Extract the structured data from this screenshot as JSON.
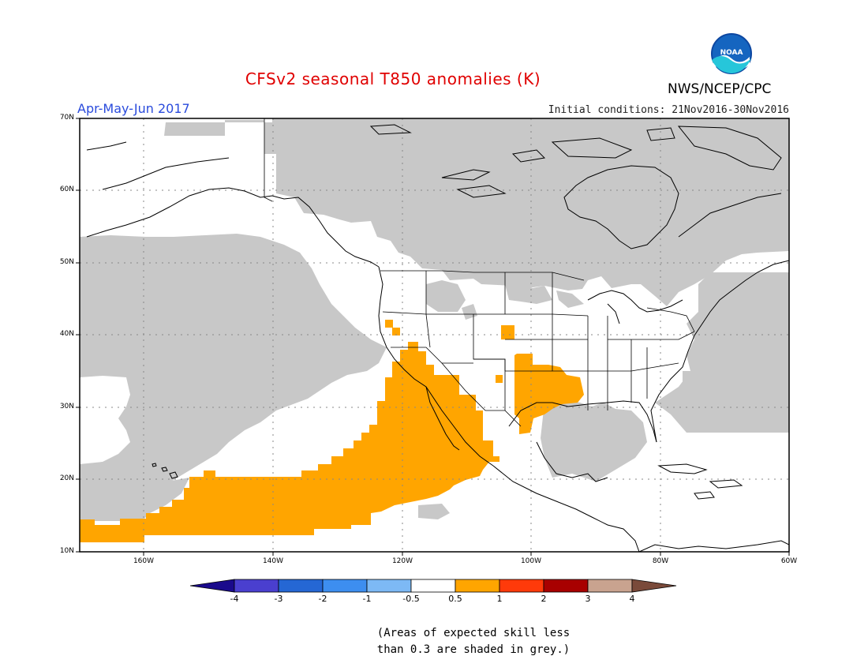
{
  "title": "CFSv2 seasonal T850 anomalies (K)",
  "period": "Apr-May-Jun 2017",
  "initial_conditions": "Initial conditions: 21Nov2016-30Nov2016",
  "agency": "NWS/NCEP/CPC",
  "logo_text": "NOAA",
  "map": {
    "lon_range": [
      -170,
      -60
    ],
    "lat_range": [
      10,
      70
    ],
    "lat_labels": [
      "70N",
      "60N",
      "50N",
      "40N",
      "30N",
      "20N",
      "10N"
    ],
    "lon_labels": [
      "160W",
      "140W",
      "120W",
      "100W",
      "80W",
      "60W"
    ],
    "colors": {
      "skill_mask": "#c8c8c8",
      "anomaly_0_5_to_1": "#ffa500",
      "land_outline": "#000000"
    }
  },
  "colorbar": {
    "labels": [
      "-4",
      "-3",
      "-2",
      "-1",
      "-0.5",
      "0.5",
      "1",
      "2",
      "3",
      "4"
    ],
    "colors": [
      "#1a0a8c",
      "#4a3fcf",
      "#2567d4",
      "#3d8ef0",
      "#7db9f5",
      "#ffffff",
      "#ffa500",
      "#ff3a0a",
      "#a80000",
      "#c9a38f",
      "#7a4a3a"
    ]
  },
  "note": [
    "(Areas of expected skill less",
    "than 0.3 are shaded in grey.)"
  ]
}
